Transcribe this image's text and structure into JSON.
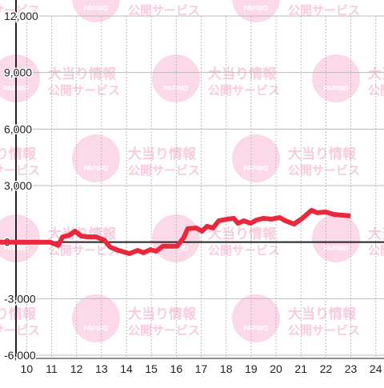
{
  "chart_data": {
    "type": "line",
    "watermark": {
      "brand": "PAPIMO",
      "line1": "大当り情報",
      "line2": "公開サービス"
    },
    "x": [
      8.93,
      10.94,
      11.27,
      11.44,
      11.71,
      11.94,
      12.18,
      12.44,
      12.78,
      13.11,
      13.35,
      13.68,
      14.12,
      14.45,
      14.69,
      14.96,
      15.19,
      15.46,
      15.69,
      16.03,
      16.3,
      16.46,
      16.8,
      17.03,
      17.23,
      17.47,
      17.7,
      18.04,
      18.31,
      18.47,
      18.71,
      18.98,
      19.21,
      19.48,
      19.81,
      20.15,
      20.38,
      20.72,
      21.05,
      21.42,
      21.65,
      21.99,
      22.32,
      22.66,
      22.99
    ],
    "series": [
      {
        "color": "#e8283c",
        "values": [
          0,
          0,
          -170,
          280,
          370,
          580,
          330,
          280,
          280,
          110,
          -270,
          -440,
          -610,
          -440,
          -560,
          -400,
          -480,
          -220,
          -220,
          -220,
          240,
          710,
          750,
          580,
          840,
          750,
          1130,
          1220,
          1260,
          1000,
          1130,
          1000,
          1170,
          1260,
          1220,
          1300,
          1130,
          960,
          1260,
          1690,
          1560,
          1600,
          1470,
          1430,
          1390
        ]
      }
    ],
    "xlim": [
      8.93,
      24.33
    ],
    "ylim": [
      -6000,
      12000
    ],
    "xticks": [
      10,
      11,
      12,
      13,
      14,
      15,
      16,
      17,
      18,
      19,
      20,
      21,
      22,
      23,
      24
    ],
    "yticks": [
      {
        "value": -6000,
        "label": "-6,000"
      },
      {
        "value": -3000,
        "label": "-3,000"
      },
      0,
      {
        "value": 3000,
        "label": "3,000"
      },
      {
        "value": 6000,
        "label": "6,000"
      },
      {
        "value": 9000,
        "label": "9,000"
      },
      {
        "value": 12000,
        "label": "12,000"
      }
    ],
    "grid": true
  }
}
